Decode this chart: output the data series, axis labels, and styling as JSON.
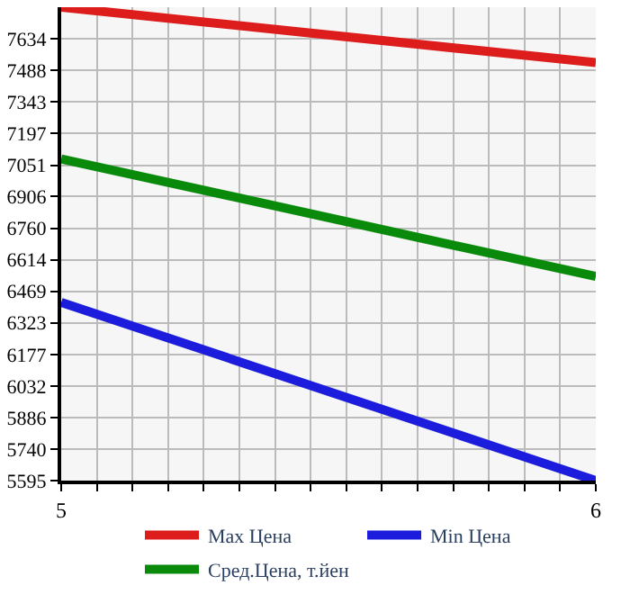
{
  "chart_data": {
    "type": "line",
    "x": [
      5,
      6
    ],
    "series": [
      {
        "name": "Max Цена",
        "color": "#dd1c1c",
        "values": [
          7780,
          7524
        ]
      },
      {
        "name": "Min Цена",
        "color": "#1c1cdd",
        "values": [
          6418,
          5595
        ]
      },
      {
        "name": "Сред.Цена, т.йен",
        "color": "#0a8a0a",
        "values": [
          7080,
          6537
        ]
      }
    ],
    "xlim": [
      5,
      6
    ],
    "xticks": [
      5,
      {
        "value": 5.0667,
        "label": null
      },
      {
        "value": 5.1333,
        "label": null
      },
      {
        "value": 5.2,
        "label": null
      },
      {
        "value": 5.2667,
        "label": null
      },
      {
        "value": 5.3333,
        "label": null
      },
      {
        "value": 5.4,
        "label": null
      },
      {
        "value": 5.4667,
        "label": null
      },
      {
        "value": 5.5333,
        "label": null
      },
      {
        "value": 5.6,
        "label": null
      },
      {
        "value": 5.6667,
        "label": null
      },
      {
        "value": 5.7333,
        "label": null
      },
      {
        "value": 5.8,
        "label": null
      },
      {
        "value": 5.8667,
        "label": null
      },
      {
        "value": 5.9333,
        "label": null
      },
      6
    ],
    "ylim": [
      5595,
      7780
    ],
    "yticks": [
      5595,
      5740,
      5886,
      6032,
      6177,
      6323,
      6469,
      6614,
      6760,
      6906,
      7051,
      7197,
      7343,
      7488,
      7634
    ],
    "grid": true,
    "legend": "bottom",
    "marker": "none",
    "line_style": "solid"
  }
}
